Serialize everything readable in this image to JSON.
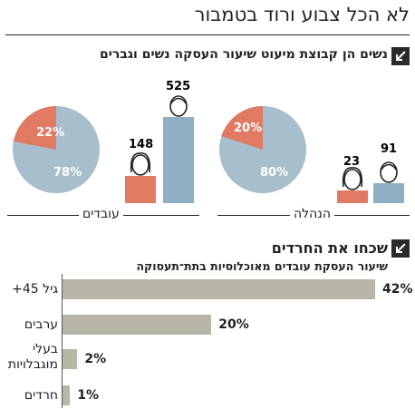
{
  "title": "לא הכל צבוע ורוד בטמבור",
  "section1": {
    "title": "נשים הן קבוצת מיעוט שיעור העסקה נשים וגברים",
    "groups": [
      {
        "label": "עובדים",
        "women_pct": "22%",
        "men_pct": "78%",
        "women_share": 22,
        "women_count": 148,
        "men_count": 525
      },
      {
        "label": "הנהלה",
        "women_pct": "20%",
        "men_pct": "80%",
        "women_share": 20,
        "women_count": 23,
        "men_count": 91
      }
    ]
  },
  "section2": {
    "title": "שכחו את החרדים",
    "subtitle": "שיעור העסקת עובדים מאוכלוסיות בתת־תעסוקה"
  },
  "colors": {
    "women": "#e07a63",
    "men": "#8fb0c3",
    "pie_men": "#a7bfcd",
    "bar": "#b7b6a7",
    "badge": "#2b2b2b"
  },
  "icons": [
    "arrow-corner-icon",
    "woman-icon",
    "man-icon"
  ],
  "chart_data": [
    {
      "type": "pie",
      "title": "עובדים",
      "slices": [
        {
          "name": "נשים",
          "value": 22
        },
        {
          "name": "גברים",
          "value": 78
        }
      ]
    },
    {
      "type": "bar",
      "title": "עובדים",
      "categories": [
        "נשים",
        "גברים"
      ],
      "values": [
        148,
        525
      ]
    },
    {
      "type": "pie",
      "title": "הנהלה",
      "slices": [
        {
          "name": "נשים",
          "value": 20
        },
        {
          "name": "גברים",
          "value": 80
        }
      ]
    },
    {
      "type": "bar",
      "title": "הנהלה",
      "categories": [
        "נשים",
        "גברים"
      ],
      "values": [
        23,
        91
      ]
    },
    {
      "type": "bar",
      "orientation": "horizontal",
      "title": "שכחו את החרדים",
      "subtitle": "שיעור העסקת עובדים מאוכלוסיות בתת־תעסוקה",
      "categories": [
        "גיל 45+",
        "ערבים",
        "בעלי מוגבלויות",
        "חרדים"
      ],
      "category_lines": [
        [
          "גיל 45+"
        ],
        [
          "ערבים"
        ],
        [
          "בעלי",
          "מוגבלויות"
        ],
        [
          "חרדים"
        ]
      ],
      "values": [
        42,
        20,
        2,
        1
      ],
      "value_labels": [
        "42%",
        "20%",
        "2%",
        "1%"
      ],
      "xlim": [
        0,
        42
      ]
    }
  ]
}
